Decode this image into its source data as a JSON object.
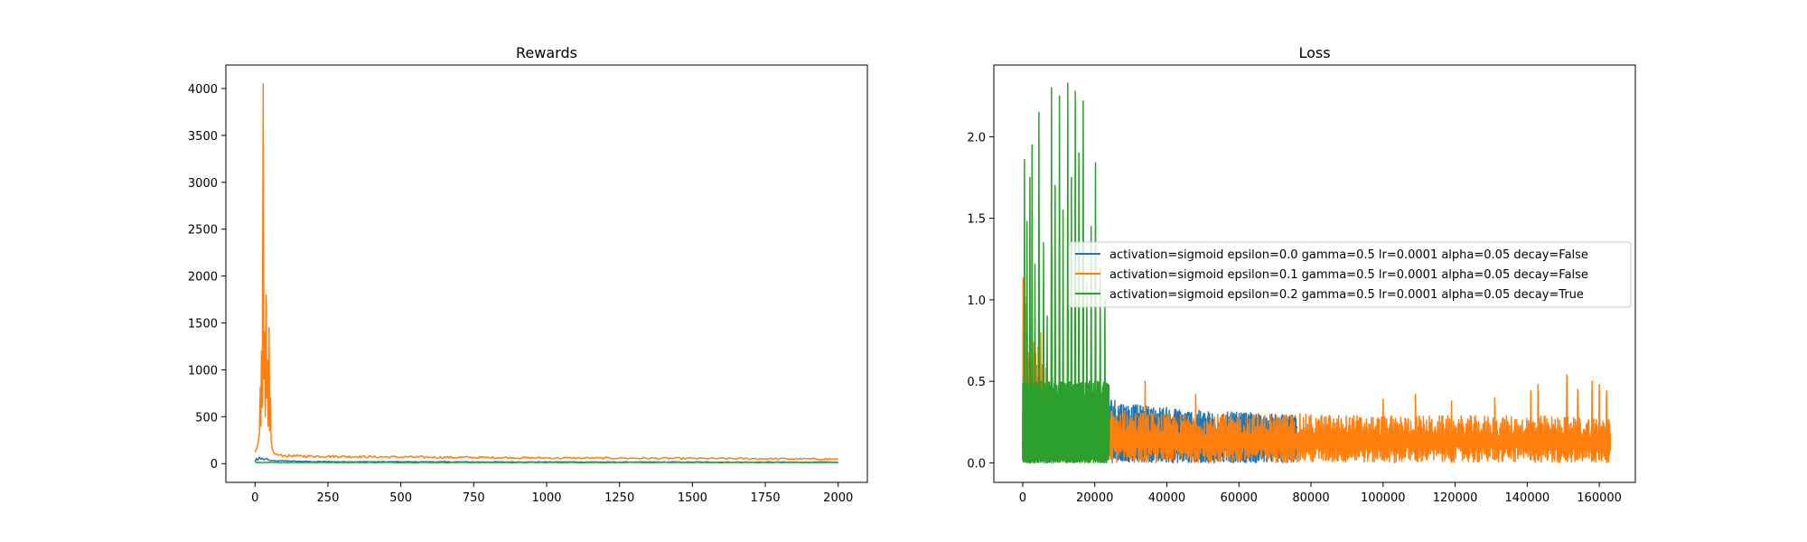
{
  "chart_data": [
    {
      "type": "line",
      "title": "Rewards",
      "xlabel": "",
      "ylabel": "",
      "xlim": [
        -100,
        2100
      ],
      "ylim": [
        -200,
        4250
      ],
      "xticks": [
        0,
        250,
        500,
        750,
        1000,
        1250,
        1500,
        1750,
        2000
      ],
      "yticks": [
        0,
        500,
        1000,
        1500,
        2000,
        2500,
        3000,
        3500,
        4000
      ],
      "grid": false,
      "legend": "none",
      "series": [
        {
          "color": "#1f77b4",
          "x": [
            0,
            5,
            10,
            15,
            20,
            25,
            30,
            40,
            50,
            60,
            80,
            100,
            150,
            200,
            300,
            500,
            750,
            1000,
            1250,
            1500,
            1750,
            2000
          ],
          "y": [
            20,
            55,
            35,
            70,
            45,
            60,
            40,
            55,
            35,
            30,
            28,
            30,
            25,
            22,
            20,
            20,
            18,
            18,
            17,
            17,
            16,
            16
          ]
        },
        {
          "color": "#ff7f0e",
          "x": [
            0,
            5,
            10,
            15,
            18,
            20,
            22,
            25,
            28,
            30,
            33,
            35,
            38,
            40,
            43,
            45,
            48,
            50,
            53,
            55,
            58,
            60,
            65,
            70,
            80,
            100,
            150,
            250,
            400,
            600,
            800,
            1000,
            1250,
            1500,
            1750,
            2000
          ],
          "y": [
            120,
            160,
            210,
            320,
            820,
            400,
            1200,
            600,
            4050,
            900,
            1400,
            500,
            1800,
            700,
            1100,
            400,
            1450,
            350,
            700,
            250,
            180,
            150,
            110,
            100,
            90,
            85,
            80,
            78,
            72,
            68,
            65,
            60,
            58,
            55,
            52,
            48
          ]
        },
        {
          "color": "#2ca02c",
          "x": [
            0,
            100,
            250,
            500,
            750,
            1000,
            1250,
            1500,
            1750,
            2000
          ],
          "y": [
            12,
            12,
            12,
            12,
            12,
            12,
            12,
            12,
            12,
            12
          ]
        }
      ]
    },
    {
      "type": "line",
      "title": "Loss",
      "xlabel": "",
      "ylabel": "",
      "xlim": [
        -8000,
        170000
      ],
      "ylim": [
        -0.12,
        2.44
      ],
      "xticks": [
        0,
        20000,
        40000,
        60000,
        80000,
        100000,
        120000,
        140000,
        160000
      ],
      "yticks": [
        0.0,
        0.5,
        1.0,
        1.5,
        2.0
      ],
      "ytick_labels": [
        "0.0",
        "0.5",
        "1.0",
        "1.5",
        "2.0"
      ],
      "grid": false,
      "legend": "center-right",
      "series": [
        {
          "name": "activation=sigmoid epsilon=0.0 gamma=0.5 lr=0.0001 alpha=0.05 decay=False",
          "color": "#1f77b4",
          "x_range": [
            0,
            76000
          ],
          "envelope": [
            [
              0,
              0.45
            ],
            [
              20000,
              0.42
            ],
            [
              25000,
              0.4
            ],
            [
              30000,
              0.36
            ],
            [
              40000,
              0.34
            ],
            [
              50000,
              0.32
            ],
            [
              60000,
              0.31
            ],
            [
              70000,
              0.3
            ],
            [
              76000,
              0.29
            ]
          ],
          "min": 0.0
        },
        {
          "name": "activation=sigmoid epsilon=0.1 gamma=0.5 lr=0.0001 alpha=0.05 decay=False",
          "color": "#ff7f0e",
          "x_range": [
            0,
            163000
          ],
          "envelope": [
            [
              0,
              1.15
            ],
            [
              3000,
              0.8
            ],
            [
              10000,
              0.5
            ],
            [
              20000,
              0.35
            ],
            [
              30000,
              0.32
            ],
            [
              40000,
              0.3
            ],
            [
              60000,
              0.3
            ],
            [
              80000,
              0.3
            ],
            [
              100000,
              0.29
            ],
            [
              120000,
              0.29
            ],
            [
              140000,
              0.29
            ],
            [
              163000,
              0.28
            ]
          ],
          "spikes": [
            [
              5000,
              0.8
            ],
            [
              34000,
              0.5
            ],
            [
              48000,
              0.42
            ],
            [
              100000,
              0.39
            ],
            [
              109000,
              0.42
            ],
            [
              119000,
              0.38
            ],
            [
              131000,
              0.4
            ],
            [
              141000,
              0.44
            ],
            [
              143000,
              0.48
            ],
            [
              151000,
              0.54
            ],
            [
              154000,
              0.45
            ],
            [
              158000,
              0.5
            ],
            [
              160000,
              0.48
            ],
            [
              162000,
              0.44
            ]
          ],
          "min": 0.0
        },
        {
          "name": "activation=sigmoid epsilon=0.2 gamma=0.5 lr=0.0001 alpha=0.05 decay=True",
          "color": "#2ca02c",
          "x_range": [
            0,
            24000
          ],
          "envelope": [
            [
              0,
              0.5
            ],
            [
              24000,
              0.5
            ]
          ],
          "spikes": [
            [
              500,
              1.86
            ],
            [
              1200,
              1.48
            ],
            [
              2000,
              1.75
            ],
            [
              2600,
              1.95
            ],
            [
              3400,
              1.22
            ],
            [
              4500,
              2.15
            ],
            [
              5800,
              1.35
            ],
            [
              6800,
              0.9
            ],
            [
              8000,
              2.3
            ],
            [
              9000,
              1.7
            ],
            [
              10200,
              2.25
            ],
            [
              11200,
              1.55
            ],
            [
              12500,
              2.33
            ],
            [
              13500,
              1.75
            ],
            [
              14600,
              2.28
            ],
            [
              15600,
              1.9
            ],
            [
              16800,
              2.22
            ],
            [
              17800,
              1.1
            ],
            [
              19000,
              1.45
            ],
            [
              20200,
              1.84
            ],
            [
              21500,
              1.2
            ],
            [
              22800,
              1.0
            ]
          ],
          "min": 0.0
        }
      ]
    }
  ]
}
